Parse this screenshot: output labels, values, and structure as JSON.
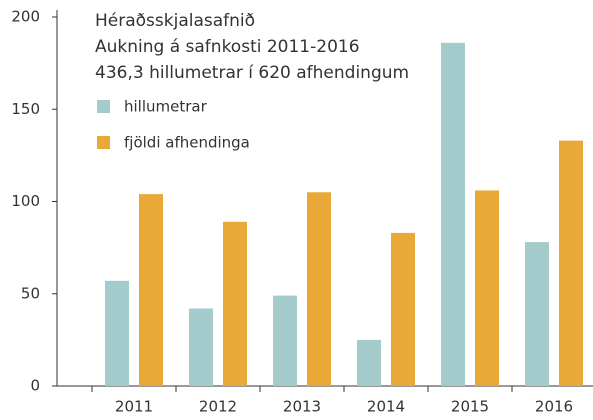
{
  "chart_data": {
    "type": "bar",
    "title": "Héraðsskjalasafnið",
    "subtitle": "Aukning á safnkosti 2011-2016",
    "annotation": "436,3 hillumetrar í 620 afhendingum",
    "categories": [
      "2011",
      "2012",
      "2013",
      "2014",
      "2015",
      "2016"
    ],
    "series": [
      {
        "name": "hillumetrar",
        "color": "#a3cbcb",
        "values": [
          57,
          42,
          49,
          25,
          186,
          78
        ]
      },
      {
        "name": "fjöldi afhendinga",
        "color": "#eaa936",
        "values": [
          104,
          89,
          105,
          83,
          106,
          133
        ]
      }
    ],
    "ylim": [
      0,
      200
    ],
    "yticks": [
      0,
      50,
      100,
      150,
      200
    ],
    "grid": false,
    "legend": "top-left"
  }
}
